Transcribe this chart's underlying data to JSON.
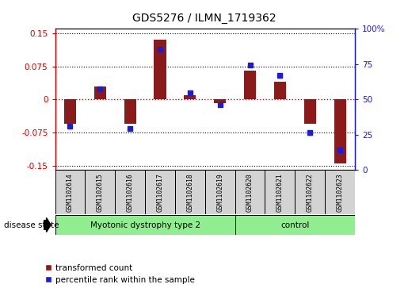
{
  "title": "GDS5276 / ILMN_1719362",
  "samples": [
    "GSM1102614",
    "GSM1102615",
    "GSM1102616",
    "GSM1102617",
    "GSM1102618",
    "GSM1102619",
    "GSM1102620",
    "GSM1102621",
    "GSM1102622",
    "GSM1102623"
  ],
  "red_values": [
    -0.055,
    0.03,
    -0.055,
    0.135,
    0.01,
    -0.008,
    0.065,
    0.04,
    -0.055,
    -0.145
  ],
  "blue_values_pct": [
    30,
    58,
    28,
    88,
    55,
    46,
    76,
    68,
    25,
    12
  ],
  "ylim": [
    -0.16,
    0.16
  ],
  "yticks_left": [
    -0.15,
    -0.075,
    0,
    0.075,
    0.15
  ],
  "yticks_right": [
    0,
    25,
    50,
    75,
    100
  ],
  "group1_label": "Myotonic dystrophy type 2",
  "group1_indices": [
    0,
    1,
    2,
    3,
    4,
    5
  ],
  "group2_label": "control",
  "group2_indices": [
    6,
    7,
    8,
    9
  ],
  "disease_label": "disease state",
  "legend_red": "transformed count",
  "legend_blue": "percentile rank within the sample",
  "red_color": "#8B1A1A",
  "blue_color": "#1C1CD4",
  "red_dotted": "#CC0000",
  "group_color": "#90EE90",
  "bg_color": "#D3D3D3",
  "title_fontsize": 10,
  "tick_fontsize": 7.5
}
